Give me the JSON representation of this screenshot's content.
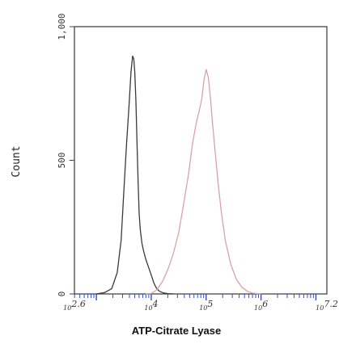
{
  "chart_data": {
    "type": "line",
    "xlabel": "ATP-Citrate Lyase",
    "ylabel": "Count",
    "xscale": "log10",
    "xlim_log10": [
      2.6,
      7.2
    ],
    "ylim": [
      0,
      1000
    ],
    "x_tick_labels": [
      {
        "log10": 2.6,
        "label": "10^2.6"
      },
      {
        "log10": 4,
        "label": "10^4"
      },
      {
        "log10": 5,
        "label": "10^5"
      },
      {
        "log10": 6,
        "label": "10^6"
      },
      {
        "log10": 7.2,
        "label": "10^7.2"
      }
    ],
    "y_tick_labels": [
      {
        "value": 0,
        "label": "0"
      },
      {
        "value": 500,
        "label": "500"
      },
      {
        "value": 1000,
        "label": "1,000"
      }
    ],
    "grid": false,
    "legend": "none",
    "series": [
      {
        "color": "#3a3a3a",
        "x_log10": [
          3.0,
          3.15,
          3.28,
          3.38,
          3.45,
          3.5,
          3.55,
          3.6,
          3.63,
          3.66,
          3.68,
          3.7,
          3.72,
          3.74,
          3.76,
          3.78,
          3.8,
          3.83,
          3.86,
          3.9,
          3.95,
          4.0,
          4.05,
          4.1,
          4.15,
          4.22,
          4.3,
          4.4
        ],
        "y": [
          0,
          5,
          20,
          80,
          200,
          380,
          560,
          720,
          830,
          890,
          880,
          830,
          720,
          570,
          420,
          300,
          240,
          190,
          160,
          130,
          100,
          70,
          40,
          20,
          10,
          4,
          1,
          0
        ]
      },
      {
        "color": "#d9a3a3",
        "x_log10": [
          3.9,
          4.0,
          4.1,
          4.2,
          4.3,
          4.4,
          4.5,
          4.6,
          4.68,
          4.75,
          4.82,
          4.88,
          4.92,
          4.96,
          5.0,
          5.04,
          5.08,
          5.12,
          5.17,
          5.22,
          5.28,
          5.35,
          5.45,
          5.55,
          5.65,
          5.75,
          5.85,
          6.0
        ],
        "y": [
          0,
          2,
          15,
          45,
          90,
          150,
          230,
          350,
          450,
          560,
          640,
          690,
          730,
          800,
          840,
          810,
          730,
          630,
          520,
          410,
          300,
          200,
          110,
          55,
          25,
          10,
          3,
          0
        ]
      }
    ]
  }
}
